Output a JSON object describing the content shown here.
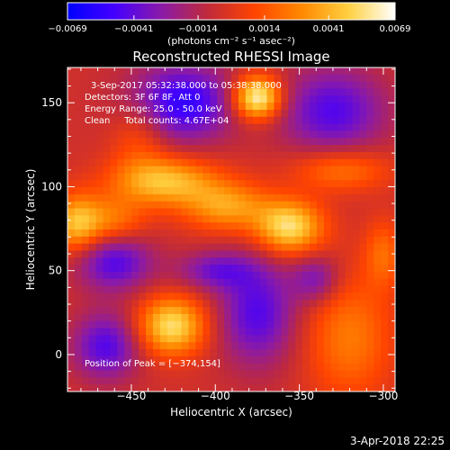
{
  "chart_data": {
    "type": "heatmap",
    "title": "Reconstructed RHESSI Image",
    "xlabel": "Heliocentric X (arcsec)",
    "ylabel": "Heliocentric Y (arcsec)",
    "xlim": [
      -488,
      -293
    ],
    "ylim": [
      -22,
      171
    ],
    "x_ticks": [
      -450,
      -400,
      -350,
      -300
    ],
    "x_tick_labels": [
      "−450",
      "−400",
      "−350",
      "−300"
    ],
    "y_ticks": [
      0,
      50,
      100,
      150
    ],
    "y_tick_labels": [
      "0",
      "50",
      "100",
      "150"
    ],
    "colorbar": {
      "label": "(photons cm⁻² s⁻¹ asec⁻²)",
      "range": [
        -0.0069,
        0.0069
      ],
      "ticks": [
        -0.0069,
        -0.0041,
        -0.0014,
        0.0014,
        0.0041,
        0.0069
      ],
      "tick_labels": [
        "−0.0069",
        "−0.0041",
        "−0.0014",
        "0.0014",
        "0.0041",
        "0.0069"
      ],
      "colormap": [
        "#0000ff",
        "#4400ff",
        "#8a1aa8",
        "#c02a3a",
        "#ff4400",
        "#ff8800",
        "#ffd040",
        "#ffffff"
      ]
    },
    "annotations": [
      "3-Sep-2017 05:32:38.000 to 05:38:38.000",
      "Detectors: 3F 6F 8F, Att 0",
      "Energy Range: 25.0 - 50.0 keV",
      "Clean     Total counts: 4.67E+04"
    ],
    "peak_label": "Position of Peak = [−374,154]",
    "peak": [
      -374,
      154
    ],
    "sources": [
      {
        "x": -375,
        "y": 153,
        "sx": 10,
        "sy": 9,
        "amp": 0.0075
      },
      {
        "x": -426,
        "y": 17,
        "sx": 14,
        "sy": 12,
        "amp": 0.006
      },
      {
        "x": -356,
        "y": 76,
        "sx": 14,
        "sy": 11,
        "amp": 0.006
      },
      {
        "x": -430,
        "y": 103,
        "sx": 22,
        "sy": 10,
        "amp": 0.005
      },
      {
        "x": -393,
        "y": 88,
        "sx": 18,
        "sy": 10,
        "amp": 0.004
      },
      {
        "x": -483,
        "y": 78,
        "sx": 10,
        "sy": 12,
        "amp": 0.0045
      },
      {
        "x": -462,
        "y": 80,
        "sx": 14,
        "sy": 10,
        "amp": 0.003
      },
      {
        "x": -445,
        "y": 130,
        "sx": 12,
        "sy": 16,
        "amp": 0.002
      },
      {
        "x": -325,
        "y": 110,
        "sx": 20,
        "sy": 9,
        "amp": 0.003
      },
      {
        "x": -320,
        "y": 10,
        "sx": 18,
        "sy": 26,
        "amp": 0.003
      },
      {
        "x": -300,
        "y": 60,
        "sx": 8,
        "sy": 14,
        "amp": 0.0025
      },
      {
        "x": -465,
        "y": 5,
        "sx": 14,
        "sy": 14,
        "amp": -0.004
      },
      {
        "x": -460,
        "y": 55,
        "sx": 16,
        "sy": 12,
        "amp": -0.004
      },
      {
        "x": -420,
        "y": 150,
        "sx": 22,
        "sy": 16,
        "amp": -0.005
      },
      {
        "x": -330,
        "y": 145,
        "sx": 22,
        "sy": 18,
        "amp": -0.004
      },
      {
        "x": -375,
        "y": 25,
        "sx": 16,
        "sy": 22,
        "amp": -0.004
      },
      {
        "x": -400,
        "y": 50,
        "sx": 16,
        "sy": 8,
        "amp": -0.003
      },
      {
        "x": -340,
        "y": 45,
        "sx": 10,
        "sy": 10,
        "amp": -0.003
      }
    ],
    "baseline": -0.0005,
    "grid": false
  },
  "footer": {
    "date": "3-Apr-2018 22:25"
  }
}
